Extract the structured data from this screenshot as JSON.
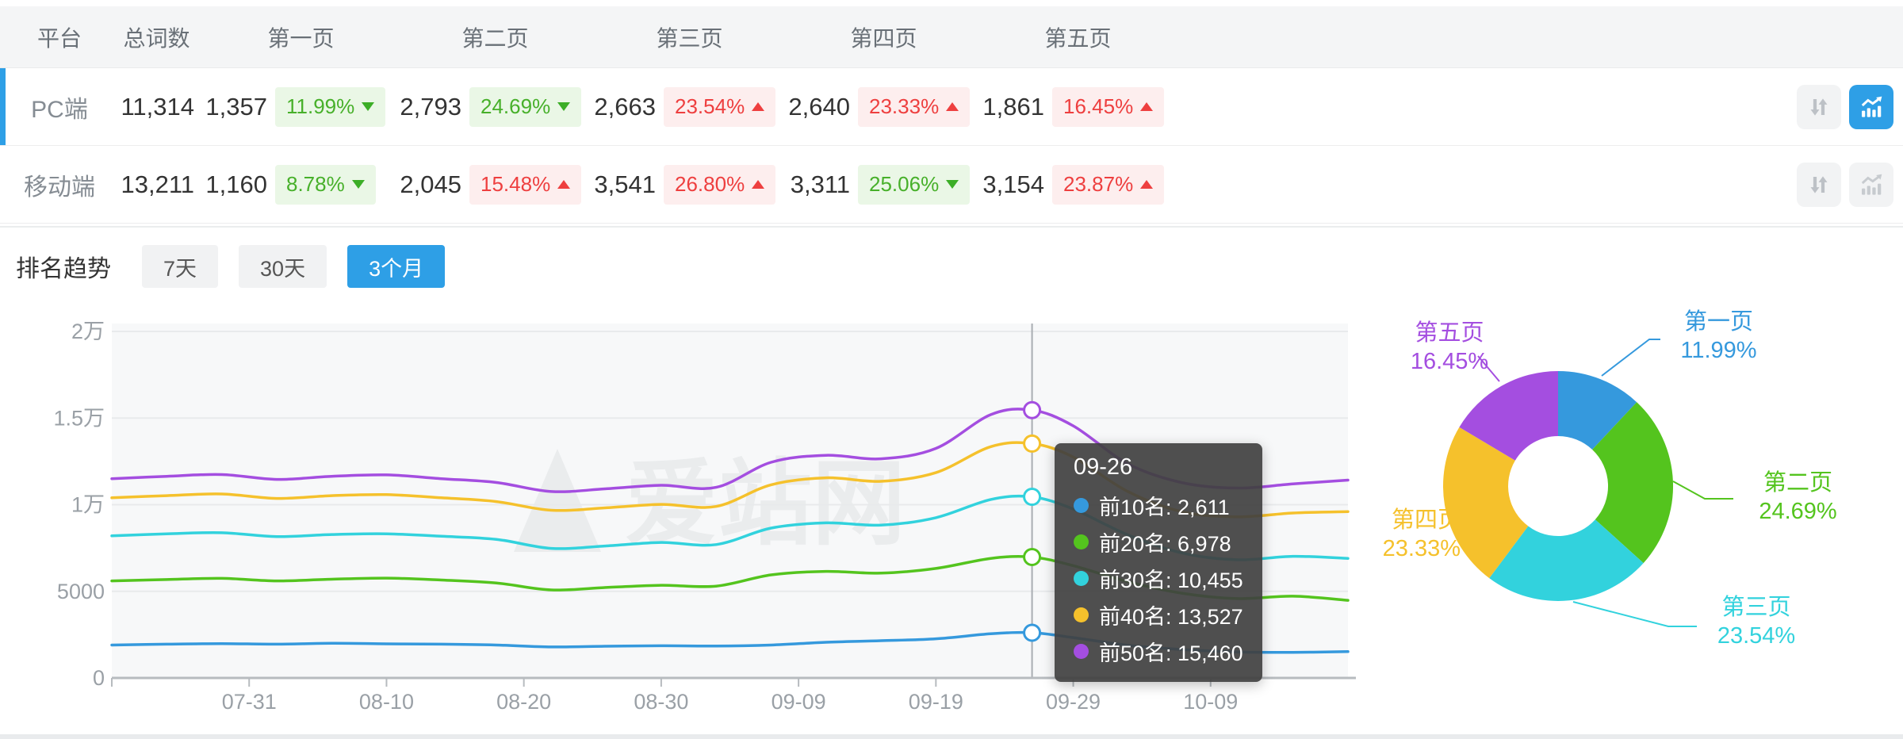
{
  "colors": {
    "accent": "#2e9fe6",
    "plot_bg": "#f7f8f9",
    "grid": "#e8eaec",
    "axis": "#b7bbbf",
    "axis_text": "#9aa0a6",
    "crosshair": "#a9adb2",
    "badge_down_text": "#47b02a",
    "badge_up_text": "#ee3f3f",
    "tooltip_bg": "rgba(64,64,64,0.92)",
    "icon_gray": "#bdc1c6"
  },
  "table": {
    "headers": [
      "平台",
      "总词数",
      "第一页",
      "第二页",
      "第三页",
      "第四页",
      "第五页"
    ],
    "rows": [
      {
        "platform": "PC端",
        "total": "11,314",
        "active": true,
        "chart_active": true,
        "pages": [
          {
            "count": "1,357",
            "pct": "11.99%",
            "dir": "down"
          },
          {
            "count": "2,793",
            "pct": "24.69%",
            "dir": "down"
          },
          {
            "count": "2,663",
            "pct": "23.54%",
            "dir": "up"
          },
          {
            "count": "2,640",
            "pct": "23.33%",
            "dir": "up"
          },
          {
            "count": "1,861",
            "pct": "16.45%",
            "dir": "up"
          }
        ]
      },
      {
        "platform": "移动端",
        "total": "13,211",
        "active": false,
        "chart_active": false,
        "pages": [
          {
            "count": "1,160",
            "pct": "8.78%",
            "dir": "down"
          },
          {
            "count": "2,045",
            "pct": "15.48%",
            "dir": "up"
          },
          {
            "count": "3,541",
            "pct": "26.80%",
            "dir": "up"
          },
          {
            "count": "3,311",
            "pct": "25.06%",
            "dir": "down"
          },
          {
            "count": "3,154",
            "pct": "23.87%",
            "dir": "up"
          }
        ]
      }
    ]
  },
  "trend": {
    "title": "排名趋势",
    "tabs": [
      {
        "label": "7天",
        "active": false
      },
      {
        "label": "30天",
        "active": false
      },
      {
        "label": "3个月",
        "active": true
      }
    ]
  },
  "watermark": "爱站网",
  "tooltip": {
    "title": "09-26",
    "items": [
      {
        "label": "前10名",
        "value": "2,611"
      },
      {
        "label": "前20名",
        "value": "6,978"
      },
      {
        "label": "前30名",
        "value": "10,455"
      },
      {
        "label": "前40名",
        "value": "13,527"
      },
      {
        "label": "前50名",
        "value": "15,460"
      }
    ]
  },
  "chart_data": [
    {
      "type": "line",
      "title": "排名趋势 3个月",
      "x": [
        "07-21",
        "07-25",
        "07-29",
        "08-02",
        "08-06",
        "08-10",
        "08-14",
        "08-18",
        "08-22",
        "08-26",
        "08-30",
        "09-03",
        "09-07",
        "09-11",
        "09-15",
        "09-19",
        "09-23",
        "09-26",
        "09-29",
        "10-03",
        "10-07",
        "10-11",
        "10-15",
        "10-19"
      ],
      "series": [
        {
          "name": "前10名",
          "color": "#3599dd",
          "values": [
            1900,
            1950,
            1980,
            1950,
            2000,
            1970,
            1950,
            1900,
            1790,
            1830,
            1860,
            1840,
            1900,
            2060,
            2150,
            2260,
            2550,
            2611,
            2330,
            1880,
            1640,
            1500,
            1480,
            1520
          ]
        },
        {
          "name": "前20名",
          "color": "#54c41e",
          "values": [
            5600,
            5680,
            5750,
            5600,
            5700,
            5760,
            5650,
            5480,
            5080,
            5220,
            5350,
            5300,
            5950,
            6150,
            6050,
            6320,
            6900,
            6978,
            6480,
            5550,
            4880,
            4580,
            4720,
            4480
          ]
        },
        {
          "name": "前30名",
          "color": "#32d2dd",
          "values": [
            8200,
            8320,
            8380,
            8160,
            8280,
            8320,
            8180,
            8000,
            7480,
            7620,
            7820,
            7700,
            8650,
            8950,
            8820,
            9250,
            10300,
            10455,
            9750,
            8250,
            7200,
            6820,
            7020,
            6900
          ]
        },
        {
          "name": "前40名",
          "color": "#f5c12c",
          "values": [
            10400,
            10520,
            10620,
            10360,
            10520,
            10580,
            10400,
            10180,
            9680,
            9820,
            10020,
            9900,
            11150,
            11550,
            11350,
            11850,
            13350,
            13527,
            12750,
            10750,
            9580,
            9300,
            9520,
            9600
          ]
        },
        {
          "name": "前50名",
          "color": "#a44ee0",
          "values": [
            11500,
            11640,
            11740,
            11460,
            11640,
            11720,
            11500,
            11280,
            10760,
            10920,
            11120,
            11000,
            12450,
            12850,
            12650,
            13250,
            15200,
            15460,
            14550,
            12350,
            11260,
            10960,
            11200,
            11420
          ]
        }
      ],
      "ylim": [
        0,
        20000
      ],
      "ytick_values": [
        0,
        5000,
        10000,
        15000,
        20000
      ],
      "ytick_labels": [
        "0",
        "5000",
        "1万",
        "1.5万",
        "2万"
      ],
      "xticks": [
        "07-31",
        "08-10",
        "08-20",
        "08-30",
        "09-09",
        "09-19",
        "09-29",
        "10-09"
      ],
      "highlight_x": "09-26",
      "grid": true,
      "legend_position": "none"
    },
    {
      "type": "pie",
      "donut": true,
      "categories": [
        "第一页",
        "第二页",
        "第三页",
        "第四页",
        "第五页"
      ],
      "values": [
        11.99,
        24.69,
        23.54,
        23.33,
        16.45
      ],
      "colors": [
        "#3599dd",
        "#54c41e",
        "#32d2dd",
        "#f5c12c",
        "#a44ee0"
      ]
    }
  ]
}
